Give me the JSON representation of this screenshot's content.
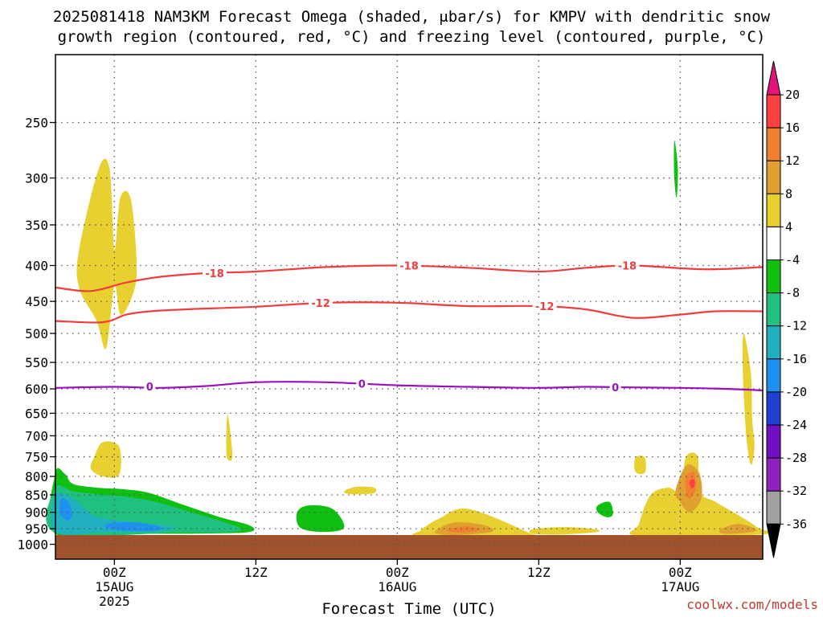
{
  "chart_data": {
    "type": "heatmap",
    "title_lines": [
      "2025081418 NAM3KM Forecast Omega (shaded, μbar/s) for KMPV with dendritic snow",
      "growth region (contoured, red, °C) and freezing level (contoured, purple, °C)"
    ],
    "xlabel": "Forecast Time (UTC)",
    "credit": "coolwx.com/models",
    "x_range_hours": [
      -5,
      55
    ],
    "y_scale": "log-pressure",
    "y_range_hpa": [
      1050,
      200
    ],
    "grid": true,
    "y_ticks": [
      250,
      300,
      350,
      400,
      450,
      500,
      550,
      600,
      650,
      700,
      750,
      800,
      850,
      900,
      950,
      1000
    ],
    "x_ticks": [
      {
        "hour": 0,
        "line1": "00Z",
        "line2": "15AUG",
        "line3": "2025"
      },
      {
        "hour": 12,
        "line1": "12Z",
        "line2": "",
        "line3": ""
      },
      {
        "hour": 24,
        "line1": "00Z",
        "line2": "16AUG",
        "line3": ""
      },
      {
        "hour": 36,
        "line1": "12Z",
        "line2": "",
        "line3": ""
      },
      {
        "hour": 48,
        "line1": "00Z",
        "line2": "17AUG",
        "line3": ""
      }
    ],
    "colorbar": {
      "labels": [
        "20",
        "16",
        "12",
        "8",
        "4",
        "-4",
        "-8",
        "-12",
        "-16",
        "-20",
        "-24",
        "-28",
        "-32",
        "-36"
      ],
      "colors": [
        "#ff4040",
        "#f08030",
        "#e0a030",
        "#e8d030",
        "#ffffff",
        "#10c010",
        "#20c080",
        "#20b0c0",
        "#2090f0",
        "#2040d0",
        "#7010c0",
        "#9020c0",
        "#a0a0a0"
      ],
      "top_arrow_color": "#e0147a",
      "bottom_arrow_color": "#000000"
    },
    "ground_color": "#a0522d",
    "ground_pressure_hpa": 970,
    "contours": {
      "dgz": {
        "color": "#f03c3c",
        "series": [
          {
            "level": -18,
            "label": "-18",
            "x": [
              -5,
              -2,
              1,
              4,
              8,
              12,
              18,
              24,
              30,
              36,
              40,
              44,
              50,
              55
            ],
            "y": [
              430,
              435,
              423,
              415,
              410,
              408,
              402,
              400,
              403,
              408,
              403,
              400,
              405,
              402
            ],
            "label_at": [
              [
                8.5,
                410
              ],
              [
                25,
                400
              ],
              [
                43.5,
                400
              ]
            ]
          },
          {
            "level": -12,
            "label": "-12",
            "x": [
              -5,
              -1,
              1,
              3,
              6,
              12,
              18,
              24,
              30,
              36,
              40,
              44,
              48,
              51,
              55
            ],
            "y": [
              480,
              482,
              470,
              465,
              462,
              458,
              452,
              452,
              457,
              457,
              462,
              475,
              470,
              465,
              465
            ],
            "label_at": [
              [
                17.5,
                452
              ],
              [
                36.5,
                457
              ]
            ]
          }
        ]
      },
      "freezing": {
        "color": "#9a10c0",
        "series": [
          {
            "level": 0,
            "label": "0",
            "x": [
              -5,
              0,
              4,
              8,
              12,
              18,
              24,
              30,
              36,
              40,
              44,
              48,
              52,
              55
            ],
            "y": [
              598,
              596,
              598,
              594,
              587,
              587,
              593,
              596,
              598,
              596,
              597,
              598,
              600,
              603
            ],
            "label_at": [
              [
                3,
                595
              ],
              [
                21,
                590
              ],
              [
                42.5,
                597
              ]
            ]
          }
        ]
      }
    },
    "omega_regions": [
      {
        "value_range": "4 to 8",
        "color": "#e8d030",
        "points": [
          [
            -3.0,
            380
          ],
          [
            -1.3,
            290
          ],
          [
            -0.4,
            292
          ],
          [
            0.0,
            380
          ],
          [
            0.5,
            320
          ],
          [
            1.4,
            322
          ],
          [
            1.9,
            405
          ],
          [
            1.4,
            447
          ],
          [
            0.5,
            470
          ],
          [
            0.0,
            428
          ],
          [
            -0.7,
            525
          ],
          [
            -1.5,
            480
          ],
          [
            -3.0,
            430
          ]
        ]
      },
      {
        "value_range": "4 to 8",
        "color": "#e8d030",
        "points": [
          [
            9.6,
            652
          ],
          [
            10.0,
            740
          ],
          [
            9.8,
            760
          ],
          [
            9.5,
            740
          ]
        ]
      },
      {
        "value_range": "4 to 8",
        "color": "#e8d030",
        "points": [
          [
            -1.7,
            750
          ],
          [
            -1.0,
            715
          ],
          [
            0.4,
            725
          ],
          [
            0.4,
            795
          ],
          [
            -1.0,
            800
          ],
          [
            -2.0,
            780
          ]
        ]
      },
      {
        "value_range": "4 to 8",
        "color": "#e8d030",
        "points": [
          [
            19.5,
            840
          ],
          [
            20.5,
            828
          ],
          [
            22.0,
            830
          ],
          [
            22.0,
            845
          ],
          [
            20.0,
            848
          ]
        ]
      },
      {
        "value_range": "4 to 8",
        "color": "#e8d030",
        "points": [
          [
            26.0,
            955
          ],
          [
            27.5,
            920
          ],
          [
            30.0,
            890
          ],
          [
            35.0,
            960
          ],
          [
            35.0,
            972
          ],
          [
            26.0,
            972
          ]
        ]
      },
      {
        "value_range": "4 to 8",
        "color": "#e8d030",
        "points": [
          [
            35.5,
            952
          ],
          [
            38.0,
            945
          ],
          [
            40.5,
            950
          ],
          [
            41.0,
            960
          ],
          [
            38.0,
            968
          ],
          [
            35.5,
            966
          ]
        ]
      },
      {
        "value_range": "4 to 8",
        "color": "#e8d030",
        "points": [
          [
            44.5,
            935
          ],
          [
            45.5,
            850
          ],
          [
            47.0,
            830
          ],
          [
            48.0,
            840
          ],
          [
            48.5,
            750
          ],
          [
            49.5,
            750
          ],
          [
            49.6,
            840
          ],
          [
            51.0,
            870
          ],
          [
            53.0,
            910
          ],
          [
            54.5,
            945
          ],
          [
            55.0,
            968
          ],
          [
            44.5,
            972
          ]
        ]
      },
      {
        "value_range": "4 to 8",
        "color": "#e8d030",
        "points": [
          [
            44.2,
            752
          ],
          [
            45.0,
            752
          ],
          [
            45.0,
            790
          ],
          [
            44.2,
            788
          ]
        ]
      },
      {
        "value_range": "4 to 8",
        "color": "#e8d030",
        "points": [
          [
            53.4,
            500
          ],
          [
            54.0,
            570
          ],
          [
            54.1,
            660
          ],
          [
            54.3,
            725
          ],
          [
            54.0,
            770
          ],
          [
            53.6,
            700
          ],
          [
            53.3,
            560
          ]
        ]
      },
      {
        "value_range": "8 to 12",
        "color": "#e0a030",
        "points": [
          [
            27.5,
            950
          ],
          [
            29.0,
            930
          ],
          [
            31.5,
            940
          ],
          [
            32.0,
            960
          ],
          [
            29.0,
            970
          ],
          [
            27.3,
            965
          ]
        ]
      },
      {
        "value_range": "8 to 12",
        "color": "#e0a030",
        "points": [
          [
            47.6,
            840
          ],
          [
            48.5,
            772
          ],
          [
            49.6,
            790
          ],
          [
            49.8,
            860
          ],
          [
            48.8,
            900
          ],
          [
            48.0,
            870
          ]
        ]
      },
      {
        "value_range": "8 to 12",
        "color": "#e0a030",
        "points": [
          [
            51.5,
            950
          ],
          [
            53.0,
            935
          ],
          [
            54.5,
            955
          ],
          [
            53.0,
            965
          ],
          [
            51.5,
            965
          ]
        ]
      },
      {
        "value_range": "12 to 16",
        "color": "#f08030",
        "points": [
          [
            28.5,
            950
          ],
          [
            30.0,
            943
          ],
          [
            31.0,
            955
          ],
          [
            29.5,
            962
          ],
          [
            28.3,
            958
          ]
        ]
      },
      {
        "value_range": "12 to 16",
        "color": "#f08030",
        "points": [
          [
            48.5,
            800
          ],
          [
            49.2,
            790
          ],
          [
            49.3,
            835
          ],
          [
            48.8,
            860
          ],
          [
            48.5,
            845
          ]
        ]
      },
      {
        "value_range": "16 to 20",
        "color": "#ff4040",
        "points": [
          [
            48.8,
            812
          ],
          [
            49.2,
            808
          ],
          [
            49.2,
            828
          ],
          [
            48.9,
            830
          ]
        ]
      },
      {
        "value_range": "-4 to -8",
        "color": "#10c010",
        "points": [
          [
            -5.0,
            790
          ],
          [
            -4.2,
            793
          ],
          [
            -3.5,
            820
          ],
          [
            -1.5,
            830
          ],
          [
            1.0,
            835
          ],
          [
            3.0,
            845
          ],
          [
            6.0,
            880
          ],
          [
            9.0,
            915
          ],
          [
            11.5,
            940
          ],
          [
            11.5,
            960
          ],
          [
            8.0,
            965
          ],
          [
            2.0,
            966
          ],
          [
            -5.0,
            966
          ]
        ]
      },
      {
        "value_range": "-4 to -8",
        "color": "#10c010",
        "points": [
          [
            15.5,
            900
          ],
          [
            16.5,
            880
          ],
          [
            18.5,
            890
          ],
          [
            19.5,
            945
          ],
          [
            18.0,
            960
          ],
          [
            15.8,
            948
          ]
        ]
      },
      {
        "value_range": "-4 to -8",
        "color": "#10c010",
        "points": [
          [
            47.5,
            265
          ],
          [
            47.8,
            290
          ],
          [
            47.7,
            320
          ],
          [
            47.5,
            300
          ]
        ]
      },
      {
        "value_range": "-4 to -8",
        "color": "#10c010",
        "points": [
          [
            41.0,
            880
          ],
          [
            42.0,
            870
          ],
          [
            42.3,
            905
          ],
          [
            41.8,
            915
          ],
          [
            41.0,
            900
          ]
        ]
      },
      {
        "value_range": "-8 to -12",
        "color": "#20c080",
        "points": [
          [
            -5.0,
            830
          ],
          [
            -3.5,
            840
          ],
          [
            -1.5,
            848
          ],
          [
            1.0,
            855
          ],
          [
            3.5,
            870
          ],
          [
            7.0,
            905
          ],
          [
            10.5,
            945
          ],
          [
            10.0,
            960
          ],
          [
            5.0,
            963
          ],
          [
            -5.0,
            963
          ]
        ]
      },
      {
        "value_range": "-12 to -16",
        "color": "#20b0c0",
        "points": [
          [
            -5.0,
            850
          ],
          [
            -3.5,
            860
          ],
          [
            -2.5,
            890
          ],
          [
            -1.5,
            915
          ],
          [
            0.5,
            925
          ],
          [
            3.0,
            935
          ],
          [
            5.0,
            945
          ],
          [
            4.0,
            958
          ],
          [
            -1.0,
            960
          ],
          [
            -5.0,
            960
          ]
        ]
      },
      {
        "value_range": "-16 to -20",
        "color": "#2090f0",
        "points": [
          [
            -4.5,
            860
          ],
          [
            -3.8,
            875
          ],
          [
            -3.6,
            910
          ],
          [
            -4.0,
            925
          ],
          [
            -4.6,
            905
          ]
        ]
      },
      {
        "value_range": "-16 to -20",
        "color": "#2090f0",
        "points": [
          [
            -0.5,
            935
          ],
          [
            1.5,
            930
          ],
          [
            3.5,
            940
          ],
          [
            4.0,
            952
          ],
          [
            2.0,
            958
          ],
          [
            -0.5,
            950
          ]
        ]
      }
    ]
  }
}
